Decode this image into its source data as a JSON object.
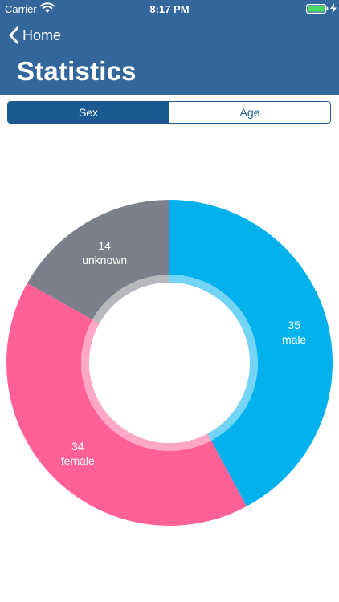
{
  "status_bar": {
    "carrier": "Carrier",
    "time": "8:17 PM",
    "wifi_icon": "wifi-icon",
    "battery_icon": "battery-icon",
    "charging_icon": "bolt-icon"
  },
  "nav": {
    "back_label": "Home",
    "back_icon": "chevron-left-icon",
    "title": "Statistics"
  },
  "tabs": [
    {
      "label": "Sex",
      "active": true
    },
    {
      "label": "Age",
      "active": false
    }
  ],
  "colors": {
    "header": "#33679b",
    "segment": "#1b5a91",
    "male": "#00b1ec",
    "female": "#ff6096",
    "unknown": "#7b7f8b"
  },
  "chart_data": {
    "type": "pie",
    "series": [
      {
        "name": "male",
        "value": 35,
        "color": "#00b1ec"
      },
      {
        "name": "female",
        "value": 34,
        "color": "#ff6096"
      },
      {
        "name": "unknown",
        "value": 14,
        "color": "#7b7f8b"
      }
    ]
  }
}
